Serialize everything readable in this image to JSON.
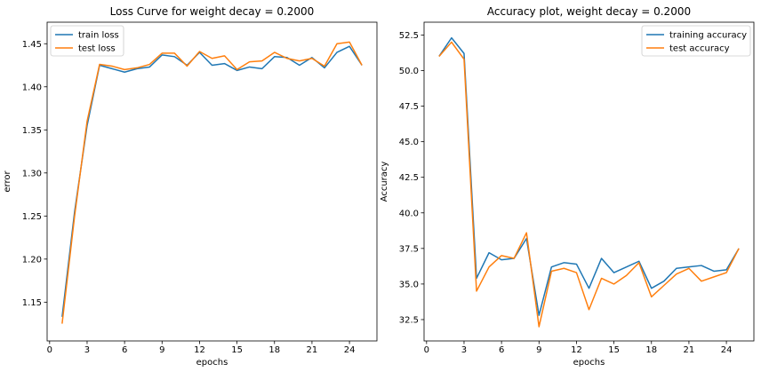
{
  "chart_data": [
    {
      "type": "line",
      "title": "Loss Curve for weight decay = 0.2000",
      "xlabel": "epochs",
      "ylabel": "error",
      "xlim": [
        -0.2,
        26.2
      ],
      "ylim": [
        1.105,
        1.475
      ],
      "xticks": [
        0,
        3,
        6,
        9,
        12,
        15,
        18,
        21,
        24
      ],
      "yticks": [
        1.15,
        1.2,
        1.25,
        1.3,
        1.35,
        1.4,
        1.45
      ],
      "ytick_decimals": 2,
      "legend_position": "top-left",
      "x": [
        1,
        2,
        3,
        4,
        5,
        6,
        7,
        8,
        9,
        10,
        11,
        12,
        13,
        14,
        15,
        16,
        17,
        18,
        19,
        20,
        21,
        22,
        23,
        24,
        25
      ],
      "series": [
        {
          "name": "train loss",
          "color": "#1f77b4",
          "values": [
            1.133,
            1.255,
            1.355,
            1.425,
            1.421,
            1.417,
            1.421,
            1.423,
            1.437,
            1.435,
            1.425,
            1.44,
            1.425,
            1.427,
            1.419,
            1.423,
            1.421,
            1.435,
            1.434,
            1.425,
            1.434,
            1.422,
            1.44,
            1.447,
            1.425
          ]
        },
        {
          "name": "test loss",
          "color": "#ff7f0e",
          "values": [
            1.125,
            1.25,
            1.36,
            1.426,
            1.424,
            1.42,
            1.422,
            1.426,
            1.439,
            1.439,
            1.424,
            1.441,
            1.433,
            1.436,
            1.42,
            1.429,
            1.43,
            1.44,
            1.433,
            1.43,
            1.433,
            1.424,
            1.45,
            1.452,
            1.425
          ]
        }
      ]
    },
    {
      "type": "line",
      "title": "Accuracy plot, weight decay = 0.2000",
      "xlabel": "epochs",
      "ylabel": "Accuracy",
      "xlim": [
        -0.2,
        26.2
      ],
      "ylim": [
        31.0,
        53.4
      ],
      "xticks": [
        0,
        3,
        6,
        9,
        12,
        15,
        18,
        21,
        24
      ],
      "yticks": [
        32.5,
        35.0,
        37.5,
        40.0,
        42.5,
        45.0,
        47.5,
        50.0,
        52.5
      ],
      "ytick_decimals": 1,
      "legend_position": "top-right",
      "x": [
        1,
        2,
        3,
        4,
        5,
        6,
        7,
        8,
        9,
        10,
        11,
        12,
        13,
        14,
        15,
        16,
        17,
        18,
        19,
        20,
        21,
        22,
        23,
        24,
        25
      ],
      "series": [
        {
          "name": "training accuracy",
          "color": "#1f77b4",
          "values": [
            51.0,
            52.3,
            51.2,
            35.4,
            37.2,
            36.7,
            36.8,
            38.2,
            32.8,
            36.2,
            36.5,
            36.4,
            34.7,
            36.8,
            35.8,
            36.2,
            36.6,
            34.7,
            35.2,
            36.1,
            36.2,
            36.3,
            35.9,
            36.0,
            37.5
          ]
        },
        {
          "name": "test accuracy",
          "color": "#ff7f0e",
          "values": [
            51.0,
            52.0,
            50.8,
            34.5,
            36.2,
            37.0,
            36.8,
            38.6,
            32.0,
            35.9,
            36.1,
            35.8,
            33.2,
            35.4,
            35.0,
            35.6,
            36.5,
            34.1,
            34.9,
            35.7,
            36.1,
            35.2,
            35.5,
            35.8,
            37.5
          ]
        }
      ]
    }
  ]
}
